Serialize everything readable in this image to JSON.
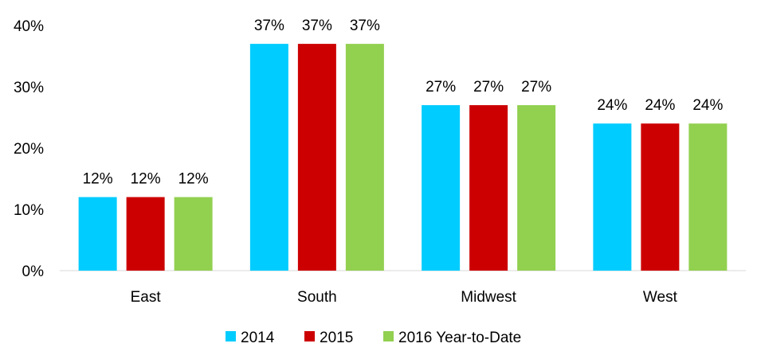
{
  "chart_data": {
    "type": "bar",
    "categories": [
      "East",
      "South",
      "Midwest",
      "West"
    ],
    "series": [
      {
        "name": "2014",
        "values": [
          12,
          37,
          27,
          24
        ]
      },
      {
        "name": "2015",
        "values": [
          12,
          37,
          27,
          24
        ]
      },
      {
        "name": "2016 Year-to-Date",
        "values": [
          12,
          37,
          27,
          24
        ]
      }
    ],
    "data_labels": [
      [
        "12%",
        "37%",
        "27%",
        "24%"
      ],
      [
        "12%",
        "37%",
        "27%",
        "24%"
      ],
      [
        "12%",
        "37%",
        "27%",
        "24%"
      ]
    ],
    "y_ticks": [
      {
        "value": 0,
        "label": "0%"
      },
      {
        "value": 10,
        "label": "10%"
      },
      {
        "value": 20,
        "label": "20%"
      },
      {
        "value": 30,
        "label": "30%"
      },
      {
        "value": 40,
        "label": "40%"
      }
    ],
    "ylim": [
      0,
      40
    ],
    "grid": false,
    "legend_position": "bottom",
    "colors": [
      "#00CCFF",
      "#CC0000",
      "#92D050"
    ]
  }
}
